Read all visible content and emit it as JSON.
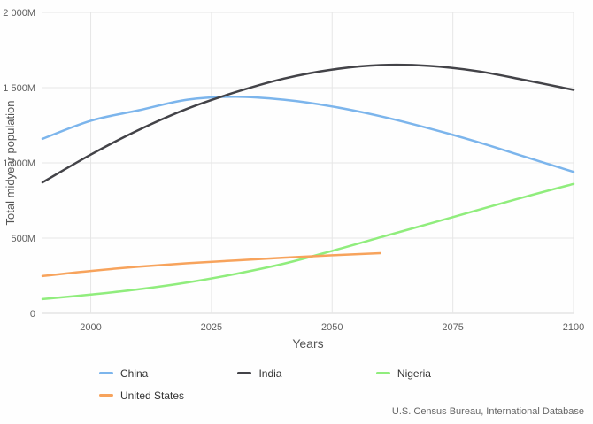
{
  "chart_data": {
    "type": "line",
    "title": "",
    "xlabel": "Years",
    "ylabel": "Total midyear population",
    "xlim": [
      1990,
      2100
    ],
    "ylim": [
      0,
      2000
    ],
    "x_ticks": [
      2000,
      2025,
      2050,
      2075,
      2100
    ],
    "y_tick_values": [
      0,
      500,
      1000,
      1500,
      2000
    ],
    "y_tick_labels": [
      "0",
      "500M",
      "1 000M",
      "1 500M",
      "2 000M"
    ],
    "grid": true,
    "legend_position": "bottom",
    "unit": "millions",
    "series": [
      {
        "name": "China",
        "color": "#7cb5ec",
        "x": [
          1990,
          2000,
          2010,
          2020,
          2030,
          2040,
          2050,
          2060,
          2070,
          2080,
          2090,
          2100
        ],
        "values": [
          1160,
          1280,
          1350,
          1420,
          1440,
          1420,
          1375,
          1310,
          1230,
          1140,
          1040,
          940
        ]
      },
      {
        "name": "India",
        "color": "#434348",
        "x": [
          1990,
          2000,
          2010,
          2020,
          2030,
          2040,
          2050,
          2060,
          2070,
          2080,
          2090,
          2100
        ],
        "values": [
          870,
          1055,
          1220,
          1360,
          1470,
          1560,
          1620,
          1650,
          1645,
          1610,
          1550,
          1485
        ]
      },
      {
        "name": "Nigeria",
        "color": "#90ed7d",
        "x": [
          1990,
          2000,
          2010,
          2020,
          2030,
          2040,
          2050,
          2060,
          2070,
          2080,
          2090,
          2100
        ],
        "values": [
          95,
          125,
          160,
          205,
          262,
          330,
          415,
          505,
          595,
          685,
          775,
          860
        ]
      },
      {
        "name": "United States",
        "color": "#f7a35c",
        "x": [
          1990,
          2000,
          2010,
          2020,
          2030,
          2040,
          2050,
          2060
        ],
        "values": [
          248,
          282,
          310,
          333,
          352,
          370,
          386,
          400
        ]
      }
    ]
  },
  "legend": {
    "items": [
      "China",
      "India",
      "Nigeria",
      "United States"
    ]
  },
  "source": "U.S. Census Bureau, International Database",
  "colors": {
    "gridline": "#e6e6e6",
    "axis_line": "#d8d8d8",
    "tick_text": "#606060"
  }
}
